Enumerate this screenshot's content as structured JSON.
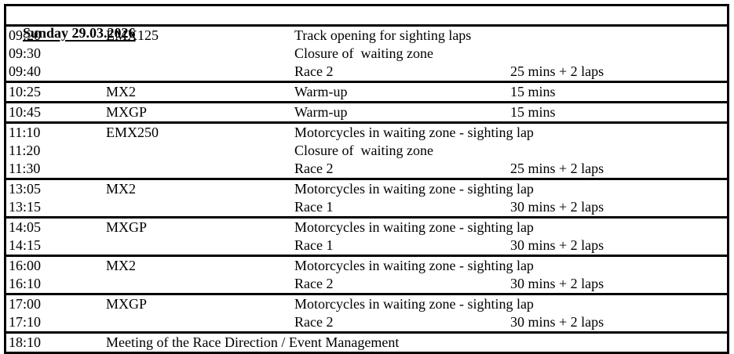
{
  "colors": {
    "text": "#000000",
    "border": "#000000",
    "background": "#ffffff"
  },
  "header": {
    "title": "Sunday 29.03.2026"
  },
  "schedule": {
    "groups": [
      {
        "rows": [
          {
            "time": "09:20",
            "class": "EMX125",
            "activity": "Track opening for sighting laps",
            "duration": ""
          },
          {
            "time": "09:30",
            "class": "",
            "activity": "Closure of  waiting zone",
            "duration": ""
          },
          {
            "time": "09:40",
            "class": "",
            "activity": "Race 2",
            "duration": "25 mins + 2 laps"
          }
        ]
      },
      {
        "rows": [
          {
            "time": "10:25",
            "class": "MX2",
            "activity": "Warm-up",
            "duration": "15 mins"
          }
        ]
      },
      {
        "rows": [
          {
            "time": "10:45",
            "class": "MXGP",
            "activity": "Warm-up",
            "duration": "15 mins"
          }
        ]
      },
      {
        "rows": [
          {
            "time": "11:10",
            "class": "EMX250",
            "activity": "Motorcycles in waiting zone - sighting lap",
            "duration": ""
          },
          {
            "time": "11:20",
            "class": "",
            "activity": "Closure of  waiting zone",
            "duration": ""
          },
          {
            "time": "11:30",
            "class": "",
            "activity": "Race 2",
            "duration": "25 mins + 2 laps"
          }
        ]
      },
      {
        "rows": [
          {
            "time": "13:05",
            "class": "MX2",
            "activity": "Motorcycles in waiting zone - sighting lap",
            "duration": ""
          },
          {
            "time": "13:15",
            "class": "",
            "activity": "Race 1",
            "duration": "30 mins + 2 laps"
          }
        ]
      },
      {
        "rows": [
          {
            "time": "14:05",
            "class": "MXGP",
            "activity": "Motorcycles in waiting zone - sighting lap",
            "duration": ""
          },
          {
            "time": "14:15",
            "class": "",
            "activity": "Race 1",
            "duration": "30 mins + 2 laps"
          }
        ]
      },
      {
        "rows": [
          {
            "time": "16:00",
            "class": "MX2",
            "activity": "Motorcycles in waiting zone - sighting lap",
            "duration": ""
          },
          {
            "time": "16:10",
            "class": "",
            "activity": "Race 2",
            "duration": "30 mins + 2 laps"
          }
        ]
      },
      {
        "rows": [
          {
            "time": "17:00",
            "class": "MXGP",
            "activity": "Motorcycles in waiting zone - sighting lap",
            "duration": ""
          },
          {
            "time": "17:10",
            "class": "",
            "activity": "Race 2",
            "duration": "30 mins + 2 laps"
          }
        ]
      },
      {
        "rows": [
          {
            "time": "18:10",
            "class": "Meeting of the Race Direction / Event Management",
            "activity": "",
            "duration": ""
          }
        ]
      }
    ]
  }
}
